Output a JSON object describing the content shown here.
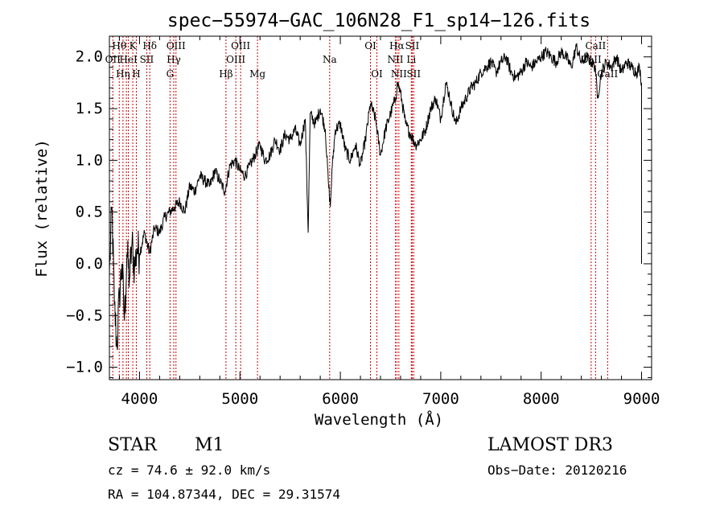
{
  "chart_data": {
    "type": "line",
    "title": "spec−55974−GAC_106N28_F1_sp14−126.fits",
    "xlabel": "Wavelength (Å)",
    "ylabel": "Flux (relative)",
    "xlim": [
      3700,
      9100
    ],
    "ylim": [
      -1.12,
      2.2
    ],
    "xticks": [
      4000,
      5000,
      6000,
      7000,
      8000,
      9000
    ],
    "xtick_labels": [
      "4000",
      "5000",
      "6000",
      "7000",
      "8000",
      "9000"
    ],
    "yticks": [
      -1.0,
      -0.5,
      0.0,
      0.5,
      1.0,
      1.5,
      2.0
    ],
    "ytick_labels": [
      "−1.0",
      "−0.5",
      "0.0",
      "0.5",
      "1.0",
      "1.5",
      "2.0"
    ],
    "line_color": "#000000",
    "marker_color": "#cc0000",
    "spectrum": {
      "name": "flux",
      "x": [
        3700,
        3725,
        3750,
        3775,
        3800,
        3825,
        3850,
        3875,
        3900,
        3925,
        3950,
        3975,
        4000,
        4050,
        4100,
        4150,
        4200,
        4250,
        4300,
        4350,
        4400,
        4450,
        4500,
        4550,
        4600,
        4650,
        4700,
        4750,
        4800,
        4850,
        4900,
        4950,
        5000,
        5050,
        5100,
        5150,
        5200,
        5250,
        5300,
        5350,
        5400,
        5450,
        5500,
        5550,
        5600,
        5650,
        5680,
        5700,
        5750,
        5800,
        5850,
        5880,
        5900,
        5920,
        5950,
        6000,
        6050,
        6100,
        6150,
        6200,
        6250,
        6300,
        6350,
        6400,
        6450,
        6500,
        6550,
        6570,
        6600,
        6650,
        6700,
        6750,
        6800,
        6850,
        6900,
        6950,
        7000,
        7050,
        7080,
        7100,
        7150,
        7200,
        7250,
        7300,
        7350,
        7400,
        7450,
        7500,
        7550,
        7600,
        7650,
        7700,
        7750,
        7800,
        7850,
        7900,
        7950,
        8000,
        8050,
        8100,
        8150,
        8200,
        8250,
        8300,
        8350,
        8400,
        8450,
        8500,
        8540,
        8560,
        8600,
        8650,
        8700,
        8750,
        8800,
        8850,
        8900,
        8950,
        8980,
        9000,
        9000
      ],
      "y": [
        -0.1,
        0.55,
        -0.4,
        -0.8,
        -0.3,
        0.0,
        -0.55,
        0.1,
        -0.15,
        0.2,
        -0.05,
        0.15,
        0.1,
        0.3,
        0.1,
        0.35,
        0.3,
        0.45,
        0.5,
        0.55,
        0.6,
        0.5,
        0.75,
        0.7,
        0.85,
        0.8,
        0.75,
        0.9,
        0.8,
        0.7,
        0.95,
        1.0,
        0.9,
        0.85,
        0.95,
        1.05,
        1.15,
        1.0,
        1.05,
        1.2,
        1.1,
        1.25,
        1.2,
        1.3,
        1.15,
        1.4,
        0.3,
        1.45,
        1.35,
        1.5,
        1.3,
        0.8,
        0.55,
        0.95,
        1.3,
        1.35,
        1.1,
        1.0,
        1.15,
        0.95,
        1.2,
        1.55,
        1.4,
        1.05,
        1.3,
        1.45,
        1.6,
        1.75,
        1.65,
        1.35,
        1.25,
        1.15,
        1.2,
        1.3,
        1.5,
        1.6,
        1.4,
        1.75,
        1.65,
        1.55,
        1.35,
        1.5,
        1.6,
        1.7,
        1.75,
        1.85,
        1.9,
        1.95,
        1.85,
        1.95,
        2.0,
        1.85,
        1.8,
        1.85,
        1.95,
        1.9,
        1.95,
        2.0,
        2.05,
        2.0,
        1.95,
        2.05,
        2.0,
        1.9,
        2.1,
        1.95,
        2.0,
        1.95,
        1.9,
        1.6,
        1.85,
        1.95,
        1.9,
        2.0,
        1.85,
        1.95,
        1.9,
        1.85,
        1.9,
        1.75,
        0.0
      ]
    },
    "line_markers": [
      {
        "wavelength": 3734,
        "label": "OII",
        "row": 1
      },
      {
        "wavelength": 3798,
        "label": "Hθ",
        "row": 0
      },
      {
        "wavelength": 3835,
        "label": "Hη",
        "row": 2
      },
      {
        "wavelength": 3869,
        "label": "",
        "row": -1
      },
      {
        "wavelength": 3889,
        "label": "HeI",
        "row": 1
      },
      {
        "wavelength": 3933,
        "label": "K",
        "row": 0
      },
      {
        "wavelength": 3968,
        "label": "H",
        "row": 2
      },
      {
        "wavelength": 4072,
        "label": "SII",
        "row": 1
      },
      {
        "wavelength": 4102,
        "label": "Hδ",
        "row": 0
      },
      {
        "wavelength": 4304,
        "label": "G",
        "row": 2
      },
      {
        "wavelength": 4341,
        "label": "Hγ",
        "row": 1
      },
      {
        "wavelength": 4363,
        "label": "OIII",
        "row": 0
      },
      {
        "wavelength": 4861,
        "label": "Hβ",
        "row": 2
      },
      {
        "wavelength": 4959,
        "label": "OIII",
        "row": 1
      },
      {
        "wavelength": 5007,
        "label": "OIII",
        "row": 0
      },
      {
        "wavelength": 5175,
        "label": "Mg",
        "row": 2
      },
      {
        "wavelength": 5894,
        "label": "Na",
        "row": 1
      },
      {
        "wavelength": 6300,
        "label": "OI",
        "row": 0
      },
      {
        "wavelength": 6364,
        "label": "OI",
        "row": 2
      },
      {
        "wavelength": 6548,
        "label": "NII",
        "row": 1
      },
      {
        "wavelength": 6563,
        "label": "Hα",
        "row": 0
      },
      {
        "wavelength": 6583,
        "label": "NII",
        "row": 2
      },
      {
        "wavelength": 6707,
        "label": "Li",
        "row": 1
      },
      {
        "wavelength": 6716,
        "label": "SII",
        "row": 0
      },
      {
        "wavelength": 6731,
        "label": "SII",
        "row": 2
      },
      {
        "wavelength": 8498,
        "label": "CaII",
        "row": 1
      },
      {
        "wavelength": 8542,
        "label": "CaII",
        "row": 0
      },
      {
        "wavelength": 8662,
        "label": "CaII",
        "row": 2
      }
    ]
  },
  "info": {
    "class": "STAR",
    "subclass": "M1",
    "survey": "LAMOST DR3",
    "cz": "cz = 74.6 ± 92.0 km/s",
    "obs_date": "Obs−Date: 20120216",
    "radec": "RA = 104.87344, DEC =  29.31574"
  }
}
